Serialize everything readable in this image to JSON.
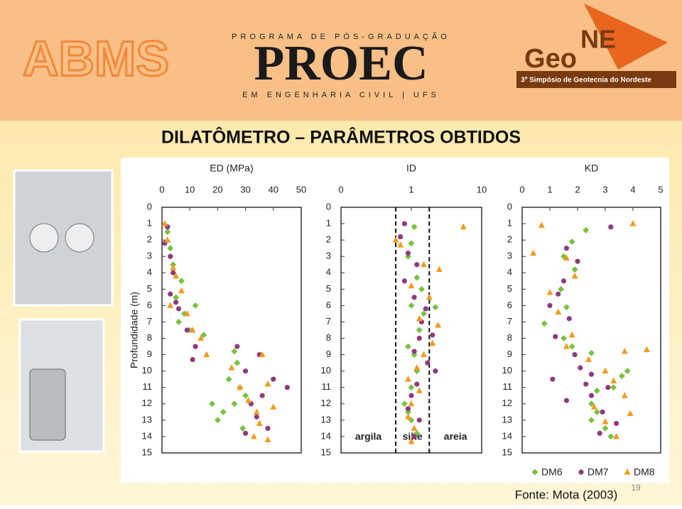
{
  "header": {
    "logo_left": "ABMS",
    "program_top": "PROGRAMA DE PÓS-GRADUAÇÃO",
    "program_name": "PROEC",
    "program_bottom": "EM ENGENHARIA CIVIL | UFS",
    "geo": "Geo",
    "ne": "NE",
    "symposium": "3º Simpósio de Geotecnia do Nordeste"
  },
  "slide": {
    "title": "DILATÔMETRO – PARÂMETROS OBTIDOS",
    "source": "Fonte: Mota (2003)",
    "page": "19",
    "ylabel": "Profundidade (m)"
  },
  "chart_data": [
    {
      "type": "scatter",
      "xlabel": "ED (MPa)",
      "xlim": [
        0,
        50
      ],
      "xticks": [
        0,
        10,
        20,
        30,
        40,
        50
      ],
      "ylim": [
        0,
        15
      ],
      "yticks": [
        0,
        1,
        2,
        3,
        4,
        5,
        6,
        7,
        8,
        9,
        10,
        11,
        12,
        13,
        14,
        15
      ],
      "y_inverted": true,
      "series": [
        {
          "name": "DM6",
          "color": "#7ac143",
          "marker": "diamond",
          "x": [
            2,
            3,
            4,
            7,
            5,
            12,
            8,
            6,
            10,
            15,
            26,
            27,
            24,
            28,
            30,
            26,
            22,
            18,
            20,
            29
          ],
          "values": [
            1.5,
            2.5,
            3.5,
            4.5,
            5.5,
            6,
            6.5,
            7,
            7.5,
            7.8,
            8.8,
            9.5,
            10.5,
            11,
            11.5,
            12,
            12.5,
            12,
            13,
            13.5
          ]
        },
        {
          "name": "DM7",
          "color": "#8e3a7e",
          "marker": "circle",
          "x": [
            2,
            1,
            3,
            4,
            3,
            6,
            5,
            9,
            12,
            11,
            27,
            35,
            30,
            40,
            45,
            36,
            32,
            34,
            38,
            30
          ],
          "values": [
            1.2,
            2.2,
            3,
            4,
            5.3,
            6.2,
            5.8,
            7.5,
            8.5,
            9.3,
            8.5,
            9,
            10,
            10.5,
            11,
            11.5,
            12,
            12.8,
            13.5,
            13.8
          ]
        },
        {
          "name": "DM8",
          "color": "#f39a1e",
          "marker": "triangle",
          "x": [
            1,
            2,
            4,
            5,
            7,
            3,
            9,
            11,
            14,
            16,
            25,
            36,
            38,
            28,
            31,
            34,
            40,
            35,
            33,
            38
          ],
          "values": [
            1,
            2,
            3.7,
            4.2,
            5.1,
            6,
            6.5,
            7.5,
            8,
            9,
            9.8,
            9,
            10.8,
            11,
            11.8,
            12.5,
            12.2,
            13.2,
            14,
            14.2
          ]
        }
      ]
    },
    {
      "type": "scatter",
      "xlabel": "ID",
      "xlog": true,
      "xlim": [
        0.1,
        10
      ],
      "xticks": [
        {
          "value": 0.1,
          "label": "0"
        },
        1,
        10
      ],
      "ylim": [
        0,
        15
      ],
      "yticks": [
        0,
        1,
        2,
        3,
        4,
        5,
        6,
        7,
        8,
        9,
        10,
        11,
        12,
        13,
        14,
        15
      ],
      "y_inverted": true,
      "boundaries": [
        0.6,
        1.8
      ],
      "zone_labels": [
        "argila",
        "silte",
        "areia"
      ],
      "series": [
        {
          "name": "DM6",
          "color": "#7ac143",
          "marker": "diamond",
          "x": [
            1.1,
            1.0,
            0.9,
            1.2,
            1.4,
            1.0,
            1.5,
            2.2,
            1.3,
            0.9,
            1.1,
            1.2,
            1.0,
            0.8,
            0.9,
            1.0,
            1.2,
            1.1
          ],
          "values": [
            1.2,
            2.2,
            3.0,
            4.3,
            5.0,
            6.0,
            6.5,
            6.1,
            7.5,
            8.5,
            9.0,
            10.0,
            11.0,
            12.0,
            12.5,
            13.0,
            13.8,
            14.0
          ]
        },
        {
          "name": "DM7",
          "color": "#8e3a7e",
          "marker": "circle",
          "x": [
            0.8,
            0.7,
            0.9,
            1.2,
            0.8,
            1.1,
            1.6,
            1.4,
            2.0,
            1.3,
            1.1,
            1.7,
            2.2,
            1.2,
            1.0,
            0.9,
            1.3,
            1.1
          ],
          "values": [
            1.0,
            1.8,
            2.8,
            3.5,
            4.5,
            5.5,
            6.2,
            7.0,
            7.8,
            8.0,
            8.8,
            9.5,
            10.0,
            10.8,
            11.5,
            12.3,
            13.0,
            14.0
          ]
        },
        {
          "name": "DM8",
          "color": "#f39a1e",
          "marker": "triangle",
          "x": [
            0.7,
            5.5,
            0.6,
            1.5,
            2.5,
            1.0,
            1.8,
            1.3,
            2.4,
            2.0,
            1.5,
            1.2,
            0.9,
            1.3,
            1.0,
            0.9,
            1.1,
            1.0
          ],
          "values": [
            2.3,
            1.2,
            2.0,
            3.5,
            3.8,
            4.8,
            5.5,
            6.8,
            7.2,
            8.3,
            9.0,
            9.8,
            10.5,
            11.2,
            12.0,
            12.8,
            13.5,
            14.3
          ]
        }
      ]
    },
    {
      "type": "scatter",
      "xlabel": "KD",
      "xlim": [
        0,
        5
      ],
      "xticks": [
        0,
        1,
        2,
        3,
        4,
        5
      ],
      "ylim": [
        0,
        15
      ],
      "yticks": [
        0,
        1,
        2,
        3,
        4,
        5,
        6,
        7,
        8,
        9,
        10,
        11,
        12,
        13,
        14,
        15
      ],
      "y_inverted": true,
      "legend": "bottom",
      "series": [
        {
          "name": "DM6",
          "color": "#7ac143",
          "marker": "diamond",
          "x": [
            2.3,
            1.8,
            1.5,
            1.9,
            1.4,
            1.6,
            0.8,
            1.5,
            1.8,
            2.5,
            3.8,
            3.6,
            3.3,
            2.7,
            2.5,
            2.7,
            2.5,
            3.0,
            3.2
          ],
          "values": [
            1.4,
            2.1,
            3.0,
            3.8,
            5.0,
            6.1,
            7.1,
            8.0,
            8.5,
            8.9,
            10.0,
            10.3,
            11.0,
            11.2,
            12.0,
            12.5,
            13.0,
            13.5,
            14.0
          ]
        },
        {
          "name": "DM7",
          "color": "#8e3a7e",
          "marker": "circle",
          "x": [
            3.2,
            1.6,
            2.0,
            1.5,
            1.3,
            1.0,
            1.7,
            1.2,
            1.9,
            2.1,
            2.5,
            1.1,
            2.3,
            1.6,
            3.1,
            2.5,
            2.9,
            3.4,
            2.8
          ],
          "values": [
            1.2,
            2.5,
            3.3,
            4.5,
            5.3,
            6.0,
            6.8,
            7.9,
            9.0,
            9.8,
            10.2,
            10.5,
            10.8,
            11.8,
            11.0,
            11.5,
            12.5,
            13.2,
            13.8
          ]
        },
        {
          "name": "DM8",
          "color": "#f39a1e",
          "marker": "triangle",
          "x": [
            0.7,
            0.4,
            1.6,
            1.9,
            1.0,
            1.3,
            1.8,
            1.6,
            2.4,
            3.7,
            4.5,
            3.0,
            3.3,
            3.7,
            2.6,
            3.9,
            3.0,
            3.4,
            4.0
          ],
          "values": [
            1.1,
            2.8,
            3.1,
            4.2,
            5.2,
            6.4,
            7.8,
            8.5,
            9.3,
            8.8,
            8.7,
            10.0,
            10.6,
            11.5,
            12.2,
            12.6,
            13.1,
            14.0,
            1.0
          ]
        }
      ]
    }
  ]
}
